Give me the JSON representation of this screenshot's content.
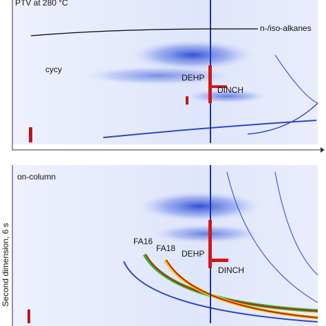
{
  "panels": [
    {
      "title": "PTV at 280 °C",
      "labels": [
        "n-/iso-alkanes",
        "cycy",
        "DEHP",
        "DINCH"
      ]
    },
    {
      "title": "on-column",
      "labels": [
        "FA16",
        "FA18",
        "DEHP",
        "DINCH"
      ]
    }
  ],
  "y_axis_label": "Second dimension, 6 s"
}
